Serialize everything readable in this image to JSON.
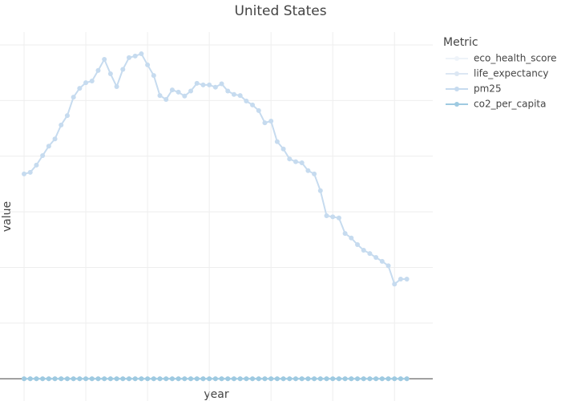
{
  "chart_data": {
    "type": "line",
    "title": "United States",
    "x_label": "year",
    "y_label": "value",
    "legend_title": "Metric",
    "x": [
      0,
      1,
      2,
      3,
      4,
      5,
      6,
      7,
      8,
      9,
      10,
      11,
      12,
      13,
      14,
      15,
      16,
      17,
      18,
      19,
      20,
      21,
      22,
      23,
      24,
      25,
      26,
      27,
      28,
      29,
      30,
      31,
      32,
      33,
      34,
      35,
      36,
      37,
      38,
      39,
      40,
      41,
      42,
      43,
      44,
      45,
      46,
      47,
      48,
      49,
      50,
      51,
      52,
      53,
      54,
      55,
      56,
      57,
      58,
      59,
      60,
      61,
      62
    ],
    "xlim": [
      -3.9,
      66.2
    ],
    "xticks": [
      0,
      10,
      20,
      30,
      40,
      50,
      60
    ],
    "ylim": [
      -0.4,
      6.23
    ],
    "yticks": [
      0,
      1,
      2,
      3,
      4,
      5,
      6
    ],
    "grid": true,
    "series": [
      {
        "name": "eco_health_score",
        "color": "#eef3f9",
        "values": [
          0,
          0,
          0,
          0,
          0,
          0,
          0,
          0,
          0,
          0,
          0,
          0,
          0,
          0,
          0,
          0,
          0,
          0,
          0,
          0,
          0,
          0,
          0,
          0,
          0,
          0,
          0,
          0,
          0,
          0,
          0,
          0,
          0,
          0,
          0,
          0,
          0,
          0,
          0,
          0,
          0,
          0,
          0,
          0,
          0,
          0,
          0,
          0,
          0,
          0,
          0,
          0,
          0,
          0,
          0,
          0,
          0,
          0,
          0,
          0,
          0,
          0,
          0
        ]
      },
      {
        "name": "life_expectancy",
        "color": "#dce7f3",
        "values": [
          0,
          0,
          0,
          0,
          0,
          0,
          0,
          0,
          0,
          0,
          0,
          0,
          0,
          0,
          0,
          0,
          0,
          0,
          0,
          0,
          0,
          0,
          0,
          0,
          0,
          0,
          0,
          0,
          0,
          0,
          0,
          0,
          0,
          0,
          0,
          0,
          0,
          0,
          0,
          0,
          0,
          0,
          0,
          0,
          0,
          0,
          0,
          0,
          0,
          0,
          0,
          0,
          0,
          0,
          0,
          0,
          0,
          0,
          0,
          0,
          0,
          0,
          0
        ]
      },
      {
        "name": "pm25",
        "color": "#c6dbef",
        "values": [
          3.68,
          3.71,
          3.84,
          4.01,
          4.18,
          4.31,
          4.56,
          4.73,
          5.06,
          5.22,
          5.32,
          5.35,
          5.54,
          5.74,
          5.48,
          5.25,
          5.56,
          5.77,
          5.8,
          5.84,
          5.64,
          5.45,
          5.09,
          5.02,
          5.19,
          5.15,
          5.08,
          5.17,
          5.31,
          5.28,
          5.28,
          5.24,
          5.3,
          5.17,
          5.11,
          5.09,
          4.99,
          4.92,
          4.82,
          4.6,
          4.63,
          4.26,
          4.13,
          3.95,
          3.9,
          3.88,
          3.74,
          3.68,
          3.38,
          2.93,
          2.91,
          2.89,
          2.61,
          2.53,
          2.41,
          2.31,
          2.25,
          2.18,
          2.11,
          2.03,
          1.7,
          1.79,
          1.79
        ]
      },
      {
        "name": "co2_per_capita",
        "color": "#9ecae1",
        "values": [
          0,
          0,
          0,
          0,
          0,
          0,
          0,
          0,
          0,
          0,
          0,
          0,
          0,
          0,
          0,
          0,
          0,
          0,
          0,
          0,
          0,
          0,
          0,
          0,
          0,
          0,
          0,
          0,
          0,
          0,
          0,
          0,
          0,
          0,
          0,
          0,
          0,
          0,
          0,
          0,
          0,
          0,
          0,
          0,
          0,
          0,
          0,
          0,
          0,
          0,
          0,
          0,
          0,
          0,
          0,
          0,
          0,
          0,
          0,
          0,
          0,
          0,
          0
        ]
      }
    ]
  }
}
